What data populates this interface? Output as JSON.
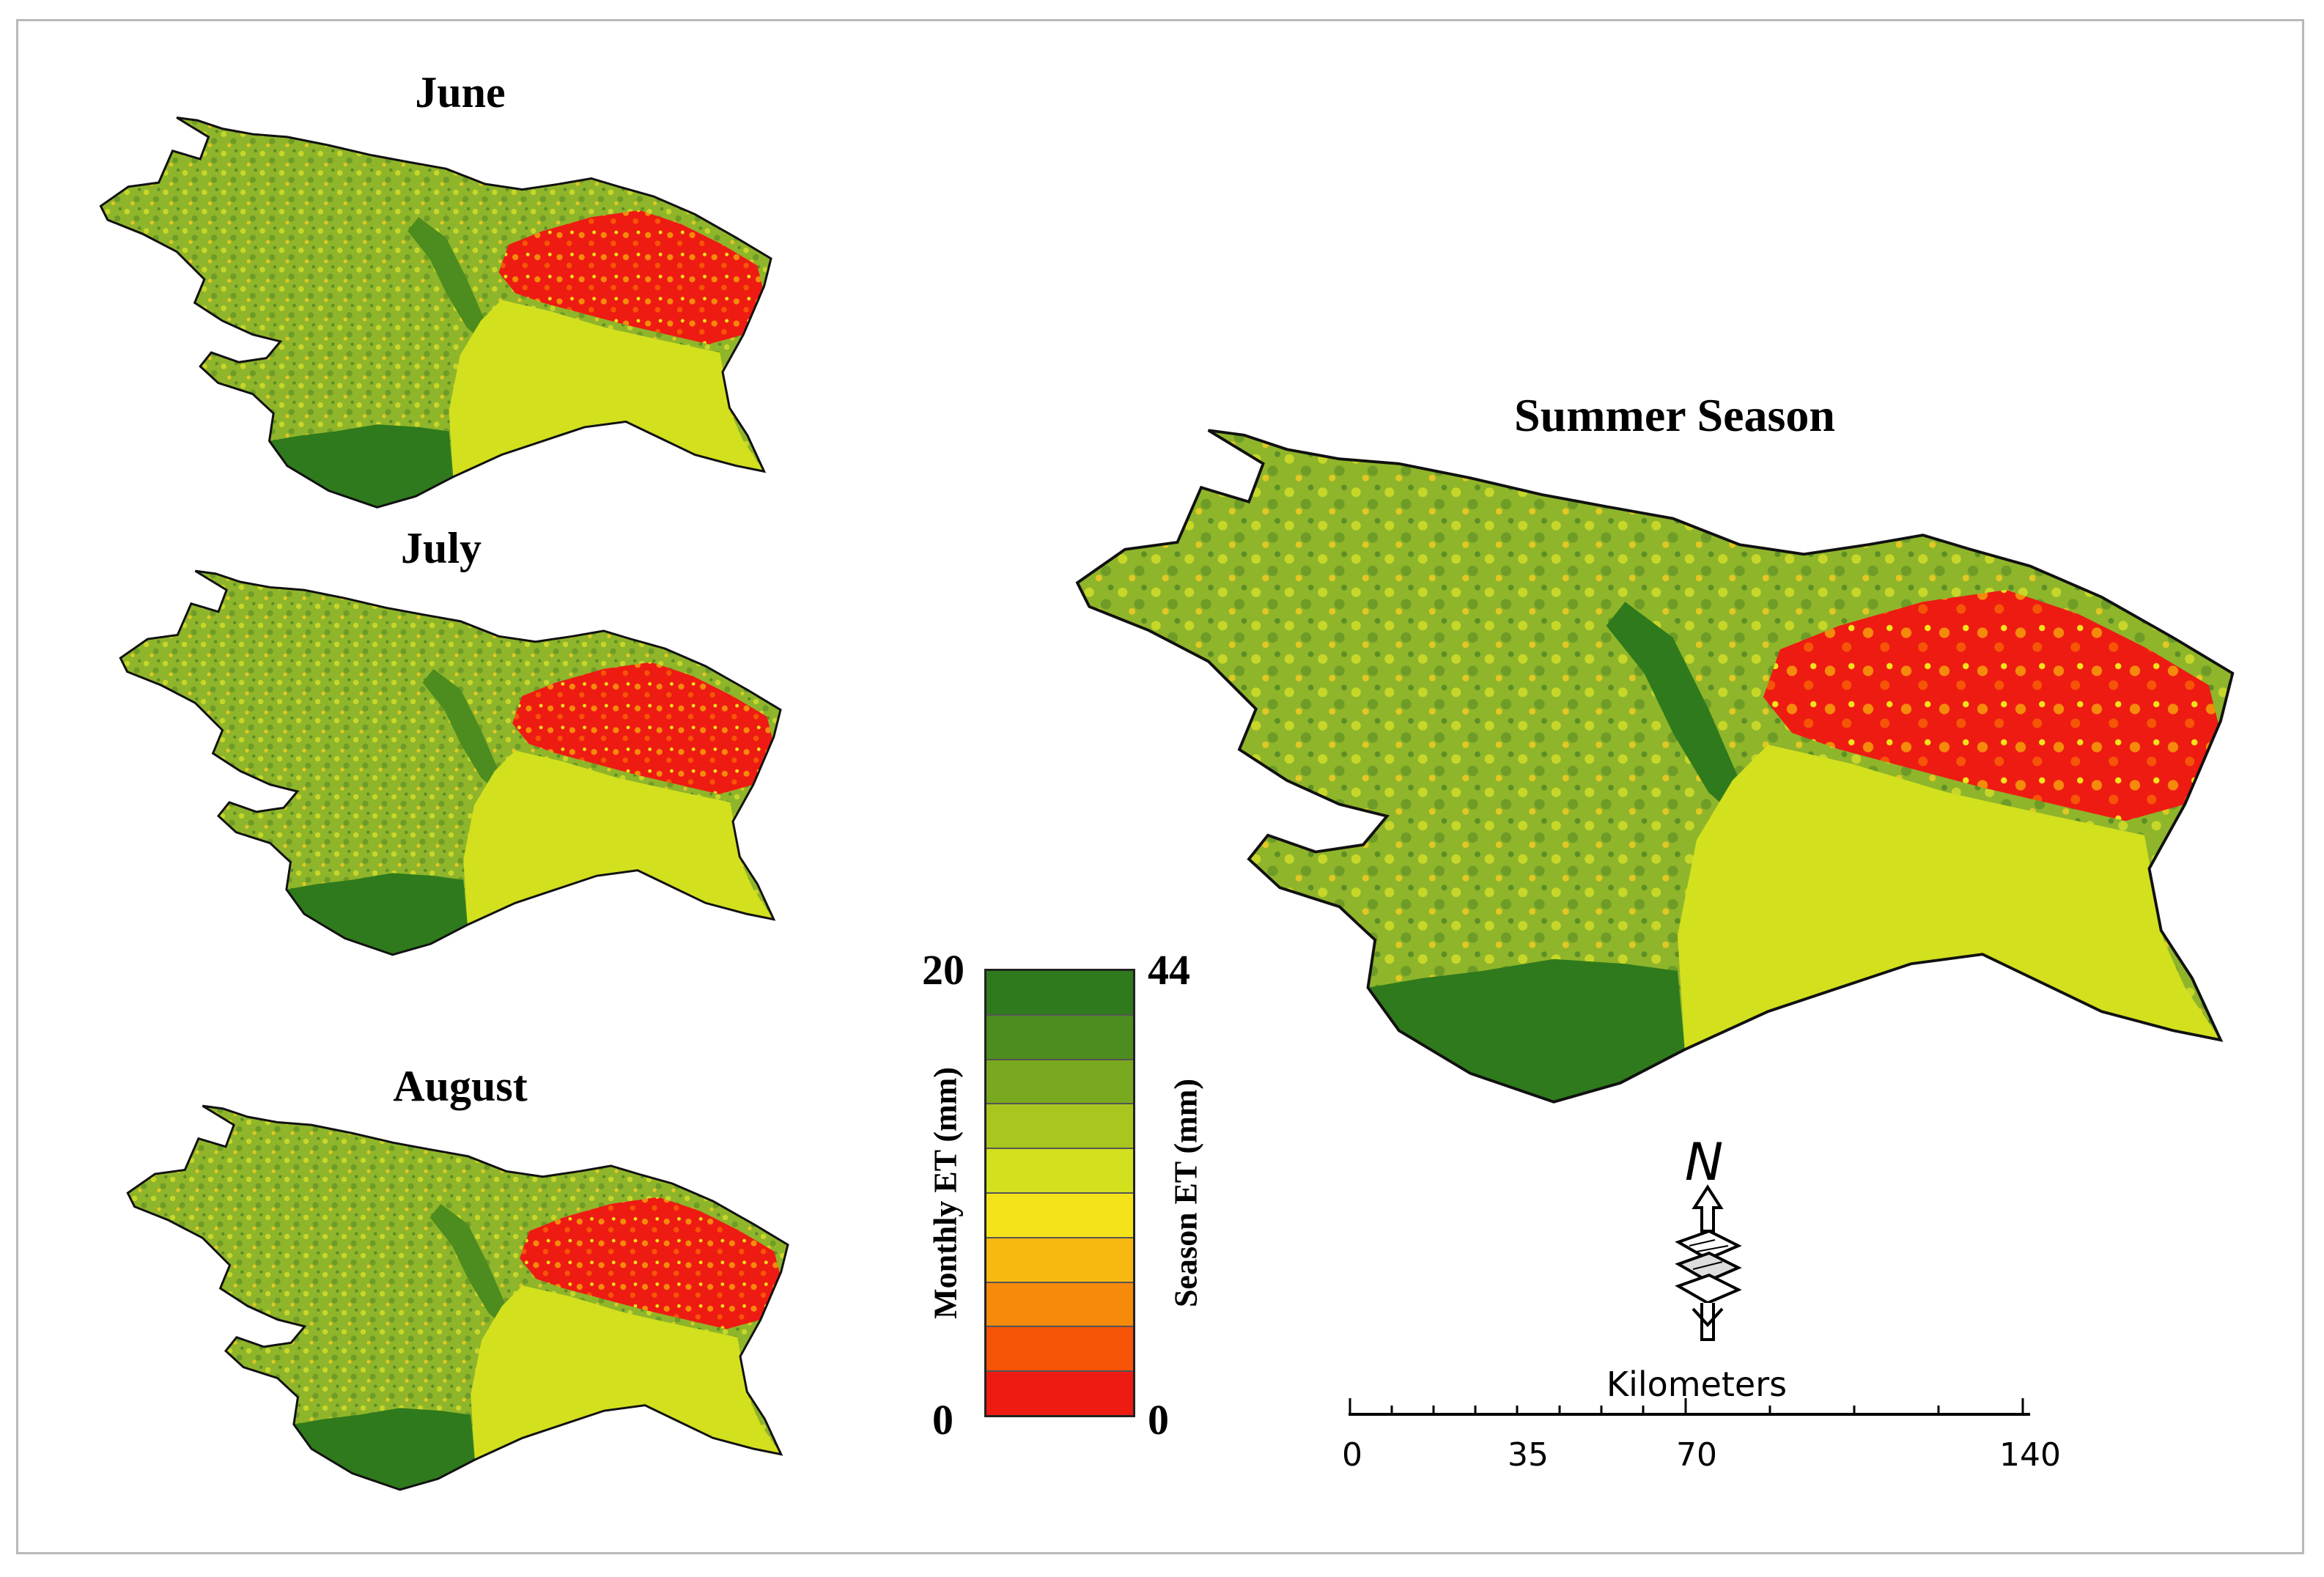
{
  "maps": {
    "june": {
      "title": "June"
    },
    "july": {
      "title": "July"
    },
    "august": {
      "title": "August"
    },
    "summer": {
      "title": "Summer Season"
    }
  },
  "legend": {
    "monthly_label": "Monthly ET (mm)",
    "season_label": "Season ET (mm)",
    "monthly_max": "20",
    "monthly_min": "0",
    "season_max": "44",
    "season_min": "0",
    "color_classes_high_to_low": [
      "#2f7a1c",
      "#4d8c1e",
      "#79a91f",
      "#a8c61d",
      "#d3e01e",
      "#f4e31a",
      "#f7b80f",
      "#f68a0b",
      "#f65406",
      "#ee1b12"
    ]
  },
  "north_arrow": {
    "label": "N"
  },
  "scale_bar": {
    "unit_label": "Kilometers",
    "tick_labels": [
      "0",
      "35",
      "70",
      "140"
    ]
  },
  "colors": {
    "dark_green": "#2f7a1c",
    "green": "#79a91f",
    "lake_yellow_green": "#d3e01e",
    "hotspot_red": "#ee1b12",
    "frame": "#b9b9b9"
  }
}
